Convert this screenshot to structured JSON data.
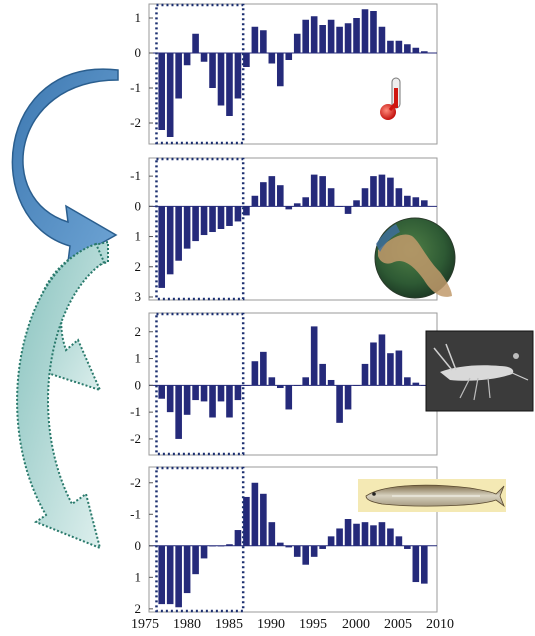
{
  "chart_data": [
    {
      "type": "bar",
      "panel": "temperature",
      "icon": "thermometer-icon",
      "y_inverted": false,
      "ylim": [
        -2.6,
        1.4
      ],
      "yticks": [
        "1",
        "0",
        "-1",
        "-2"
      ],
      "ytick_values": [
        1,
        0,
        -1,
        -2
      ],
      "x": [
        1978,
        1979,
        1980,
        1981,
        1982,
        1983,
        1984,
        1985,
        1986,
        1987,
        1988,
        1989,
        1990,
        1991,
        1992,
        1993,
        1994,
        1995,
        1996,
        1997,
        1998,
        1999,
        2000,
        2001,
        2002,
        2003,
        2004,
        2005,
        2006,
        2007,
        2008,
        2009
      ],
      "values": [
        -2.2,
        -2.4,
        -1.3,
        -0.35,
        0.55,
        -0.25,
        -1.0,
        -1.5,
        -1.8,
        -1.3,
        -0.4,
        0.75,
        0.65,
        -0.3,
        -0.95,
        -0.2,
        0.55,
        0.95,
        1.05,
        0.8,
        0.95,
        0.75,
        0.85,
        1.0,
        1.25,
        1.2,
        0.75,
        0.35,
        0.35,
        0.25,
        0.15,
        0.05
      ]
    },
    {
      "type": "bar",
      "panel": "river-discharge",
      "icon": "river-satellite-image",
      "y_inverted": true,
      "ylim": [
        -1.6,
        3.1
      ],
      "yticks": [
        "-1",
        "0",
        "1",
        "2",
        "3"
      ],
      "ytick_values": [
        -1,
        0,
        1,
        2,
        3
      ],
      "x": [
        1978,
        1979,
        1980,
        1981,
        1982,
        1983,
        1984,
        1985,
        1986,
        1987,
        1988,
        1989,
        1990,
        1991,
        1992,
        1993,
        1994,
        1995,
        1996,
        1997,
        1998,
        1999,
        2000,
        2001,
        2002,
        2003,
        2004,
        2005,
        2006,
        2007,
        2008,
        2009
      ],
      "values": [
        2.7,
        2.25,
        1.8,
        1.4,
        1.15,
        0.95,
        0.85,
        0.75,
        0.65,
        0.5,
        0.3,
        -0.35,
        -0.8,
        -1.0,
        -0.7,
        0.1,
        -0.1,
        -0.3,
        -1.05,
        -1.0,
        -0.6,
        0.0,
        0.25,
        -0.2,
        -0.6,
        -1.0,
        -1.05,
        -0.95,
        -0.6,
        -0.35,
        -0.3,
        -0.2
      ]
    },
    {
      "type": "bar",
      "panel": "zooplankton",
      "icon": "shrimp-photo",
      "y_inverted": false,
      "ylim": [
        -2.6,
        2.7
      ],
      "yticks": [
        "2",
        "1",
        "0",
        "-1",
        "-2"
      ],
      "ytick_values": [
        2,
        1,
        0,
        -1,
        -2
      ],
      "x": [
        1978,
        1979,
        1980,
        1981,
        1982,
        1983,
        1984,
        1985,
        1986,
        1987,
        1988,
        1989,
        1990,
        1991,
        1992,
        1993,
        1994,
        1995,
        1996,
        1997,
        1998,
        1999,
        2000,
        2001,
        2002,
        2003,
        2004,
        2005,
        2006,
        2007,
        2008,
        2009
      ],
      "values": [
        -0.5,
        -1.0,
        -2.0,
        -1.1,
        -0.55,
        -0.6,
        -1.2,
        -0.6,
        -1.2,
        -0.55,
        0.0,
        0.9,
        1.25,
        0.3,
        -0.1,
        -0.9,
        0.0,
        0.3,
        2.2,
        0.8,
        0.2,
        -1.4,
        -0.9,
        0.0,
        0.8,
        1.6,
        1.9,
        1.2,
        1.3,
        0.3,
        0.1,
        0.0
      ]
    },
    {
      "type": "bar",
      "panel": "fish",
      "icon": "anchovy-photo",
      "y_inverted": true,
      "ylim": [
        -2.5,
        2.1
      ],
      "yticks": [
        "-2",
        "-1",
        "0",
        "1",
        "2"
      ],
      "ytick_values": [
        -2,
        -1,
        0,
        1,
        2
      ],
      "x": [
        1978,
        1979,
        1980,
        1981,
        1982,
        1983,
        1984,
        1985,
        1986,
        1987,
        1988,
        1989,
        1990,
        1991,
        1992,
        1993,
        1994,
        1995,
        1996,
        1997,
        1998,
        1999,
        2000,
        2001,
        2002,
        2003,
        2004,
        2005,
        2006,
        2007,
        2008,
        2009
      ],
      "values": [
        1.85,
        1.85,
        1.95,
        1.5,
        0.9,
        0.4,
        0.0,
        0.0,
        -0.05,
        -0.5,
        -1.55,
        -2.0,
        -1.65,
        -0.75,
        -0.1,
        0.05,
        0.35,
        0.6,
        0.35,
        0.1,
        -0.3,
        -0.55,
        -0.85,
        -0.7,
        -0.75,
        -0.65,
        -0.75,
        -0.55,
        -0.3,
        0.1,
        1.15,
        1.2
      ]
    }
  ],
  "x_axis": {
    "xlim": [
      1976.5,
      2010.5
    ],
    "ticks": [
      "1975",
      "1980",
      "1985",
      "1990",
      "1995",
      "2000",
      "2005",
      "2010"
    ]
  },
  "highlight_period": [
    1978,
    1987
  ],
  "colors": {
    "bar": "#252a7a",
    "frame": "#9a9a9a",
    "dotted_box": "#1b2f70",
    "arrow_blue": "#4a86bd",
    "arrow_blue_stroke": "#2a5e8e",
    "arrow_teal": "#b7dcd9",
    "arrow_teal_stroke": "#2a7a6c"
  }
}
